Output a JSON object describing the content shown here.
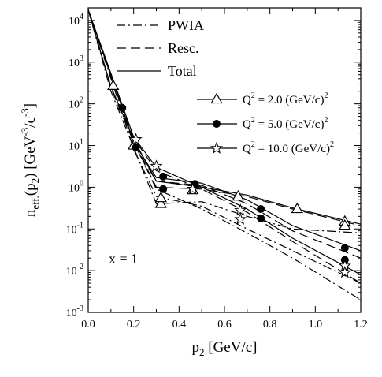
{
  "chart_data": {
    "type": "line",
    "xlabel": "p_2 [GeV/c]",
    "ylabel": "n_eff.(p_2) [GeV^-3/c^-3]",
    "xlim": [
      0.0,
      1.2
    ],
    "ylim": [
      0.001,
      20000
    ],
    "y_scale": "log",
    "grid": false,
    "x_ticks": [
      "0.0",
      "0.2",
      "0.4",
      "0.6",
      "0.8",
      "1.0",
      "1.2"
    ],
    "y_ticks": [
      {
        "base": "10",
        "exp": "-3"
      },
      {
        "base": "10",
        "exp": "-2"
      },
      {
        "base": "10",
        "exp": "-1"
      },
      {
        "base": "10",
        "exp": "0"
      },
      {
        "base": "10",
        "exp": "1"
      },
      {
        "base": "10",
        "exp": "2"
      },
      {
        "base": "10",
        "exp": "3"
      },
      {
        "base": "10",
        "exp": "4"
      }
    ],
    "line_legend": [
      {
        "label": "PWIA",
        "style": "dashdot"
      },
      {
        "label": "Resc.",
        "style": "dashed"
      },
      {
        "label": "Total",
        "style": "solid"
      }
    ],
    "marker_legend": [
      {
        "label_pre": "Q",
        "label_mid": " = 2.0 (GeV/c)",
        "exp": "2",
        "marker": "triangle-open"
      },
      {
        "label_pre": "Q",
        "label_mid": " = 5.0 (GeV/c)",
        "exp": "2",
        "marker": "circle-filled"
      },
      {
        "label_pre": "Q",
        "label_mid": " = 10.0 (GeV/c)",
        "exp": "2",
        "marker": "star-open"
      }
    ],
    "annotation": "x = 1",
    "series": [
      {
        "q2": 2.0,
        "curve": "PWIA",
        "style": "dashdot",
        "marker": "triangle-open",
        "x": [
          0.0,
          0.1,
          0.2,
          0.3,
          0.5,
          0.7,
          0.9,
          1.2
        ],
        "y": [
          18000,
          200,
          9,
          0.4,
          0.45,
          0.2,
          0.1,
          0.08
        ]
      },
      {
        "q2": 2.0,
        "curve": "Resc.",
        "style": "dashed",
        "marker": "triangle-open",
        "x": [
          0.0,
          0.1,
          0.2,
          0.3,
          0.5,
          0.7,
          0.9,
          1.2
        ],
        "y": [
          18000,
          240,
          12,
          1.0,
          0.9,
          0.6,
          0.3,
          0.12
        ]
      },
      {
        "q2": 2.0,
        "curve": "Total",
        "style": "solid",
        "marker": "triangle-open",
        "x": [
          0.0,
          0.1,
          0.2,
          0.3,
          0.5,
          0.7,
          0.9,
          1.2
        ],
        "y": [
          18000,
          260,
          14,
          1.4,
          1.0,
          0.65,
          0.32,
          0.13
        ]
      },
      {
        "q2": 5.0,
        "curve": "PWIA",
        "style": "dashdot",
        "marker": "circle-filled",
        "x": [
          0.0,
          0.15,
          0.2,
          0.3,
          0.5,
          0.7,
          0.9,
          1.2
        ],
        "y": [
          18000,
          60,
          8,
          0.6,
          0.35,
          0.1,
          0.03,
          0.005
        ]
      },
      {
        "q2": 5.0,
        "curve": "Resc.",
        "style": "dashed",
        "marker": "circle-filled",
        "x": [
          0.0,
          0.15,
          0.2,
          0.3,
          0.5,
          0.7,
          0.9,
          1.2
        ],
        "y": [
          18000,
          75,
          11,
          1.4,
          1.1,
          0.4,
          0.09,
          0.02
        ]
      },
      {
        "q2": 5.0,
        "curve": "Total",
        "style": "solid",
        "marker": "circle-filled",
        "x": [
          0.0,
          0.15,
          0.2,
          0.3,
          0.5,
          0.7,
          0.9,
          1.2
        ],
        "y": [
          18000,
          80,
          12,
          1.7,
          1.25,
          0.5,
          0.12,
          0.03
        ]
      },
      {
        "q2": 10.0,
        "curve": "PWIA",
        "style": "dashdot",
        "marker": "star-open",
        "x": [
          0.0,
          0.2,
          0.3,
          0.5,
          0.7,
          0.9,
          1.2
        ],
        "y": [
          18000,
          12,
          0.9,
          0.3,
          0.08,
          0.02,
          0.002
        ]
      },
      {
        "q2": 10.0,
        "curve": "Resc.",
        "style": "dashed",
        "marker": "star-open",
        "x": [
          0.0,
          0.2,
          0.3,
          0.5,
          0.7,
          0.9,
          1.2
        ],
        "y": [
          18000,
          15,
          2.5,
          0.9,
          0.25,
          0.05,
          0.005
        ]
      },
      {
        "q2": 10.0,
        "curve": "Total",
        "style": "solid",
        "marker": "star-open",
        "x": [
          0.0,
          0.2,
          0.3,
          0.5,
          0.7,
          0.9,
          1.2
        ],
        "y": [
          18000,
          16,
          3,
          1.0,
          0.3,
          0.06,
          0.008
        ]
      }
    ],
    "markers": [
      {
        "q2": 2.0,
        "marker": "triangle-open",
        "x": [
          0.11,
          0.2,
          0.32,
          0.46,
          0.66,
          0.92,
          1.13
        ],
        "y": [
          270,
          10,
          0.4,
          0.85,
          0.6,
          0.3,
          0.15
        ]
      },
      {
        "q2": 2.0,
        "marker": "triangle-open",
        "x": [
          0.32,
          1.13
        ],
        "y": [
          0.55,
          0.12
        ]
      },
      {
        "q2": 5.0,
        "marker": "circle-filled",
        "x": [
          0.15,
          0.21,
          0.33,
          0.33,
          0.47,
          0.76,
          0.76,
          1.13,
          1.13
        ],
        "y": [
          80,
          9,
          0.9,
          1.8,
          1.2,
          0.3,
          0.18,
          0.035,
          0.018
        ]
      },
      {
        "q2": 10.0,
        "marker": "star-open",
        "x": [
          0.21,
          0.3,
          0.46,
          0.67,
          0.67,
          1.13,
          1.13
        ],
        "y": [
          14,
          3.2,
          0.9,
          0.28,
          0.17,
          0.013,
          0.009
        ]
      }
    ]
  }
}
